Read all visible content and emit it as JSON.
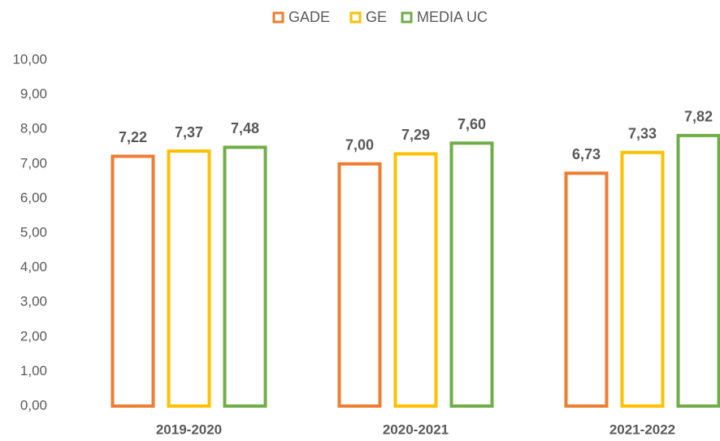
{
  "chart_data": {
    "type": "bar",
    "categories": [
      "2019-2020",
      "2020-2021",
      "2021-2022"
    ],
    "series": [
      {
        "name": "GADE",
        "color": "#ED7D31",
        "values": [
          7.22,
          7.0,
          6.73
        ],
        "value_labels": [
          "7,22",
          "7,00",
          "6,73"
        ]
      },
      {
        "name": "GE",
        "color": "#FFC000",
        "values": [
          7.37,
          7.29,
          7.33
        ],
        "value_labels": [
          "7,37",
          "7,29",
          "7,33"
        ]
      },
      {
        "name": "MEDIA UC",
        "color": "#70AD47",
        "values": [
          7.48,
          7.6,
          7.82
        ],
        "value_labels": [
          "7,48",
          "7,60",
          "7,82"
        ]
      }
    ],
    "ylim": [
      0,
      10
    ],
    "yticks": [
      {
        "value": 0,
        "label": "0,00"
      },
      {
        "value": 1,
        "label": "1,00"
      },
      {
        "value": 2,
        "label": "2,00"
      },
      {
        "value": 3,
        "label": "3,00"
      },
      {
        "value": 4,
        "label": "4,00"
      },
      {
        "value": 5,
        "label": "5,00"
      },
      {
        "value": 6,
        "label": "6,00"
      },
      {
        "value": 7,
        "label": "7,00"
      },
      {
        "value": 8,
        "label": "8,00"
      },
      {
        "value": 9,
        "label": "9,00"
      },
      {
        "value": 10,
        "label": "10,00"
      }
    ],
    "grid": false,
    "legend": "top"
  }
}
